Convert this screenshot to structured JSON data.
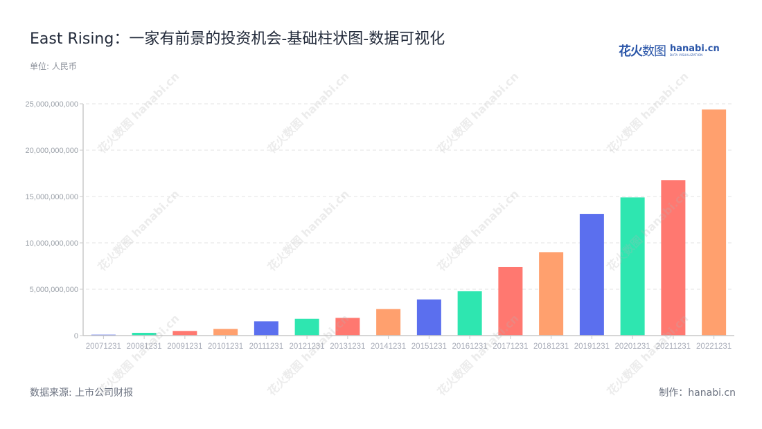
{
  "header": {
    "title": "East Rising：一家有前景的投资机会-基础柱状图-数据可视化",
    "unit": "单位: 人民币"
  },
  "logo": {
    "cn_bold": "花火",
    "cn_thin": "数图",
    "en": "hanabi.cn",
    "en_sub": "DATA VISUALIZATION"
  },
  "footer": {
    "source": "数据来源: 上市公司财报",
    "credit": "制作：hanabi.cn"
  },
  "watermark": "花火数图 hanabi.cn",
  "palette": [
    "#5b6fee",
    "#2ee6b0",
    "#ff7870",
    "#ffa06e"
  ],
  "chart_data": {
    "type": "bar",
    "title": "East Rising：一家有前景的投资机会-基础柱状图-数据可视化",
    "subtitle": "单位: 人民币",
    "xlabel": "",
    "ylabel": "",
    "categories": [
      "20071231",
      "20081231",
      "20091231",
      "20101231",
      "20111231",
      "20121231",
      "20131231",
      "20141231",
      "20151231",
      "20161231",
      "20171231",
      "20181231",
      "20191231",
      "20201231",
      "20211231",
      "20221231"
    ],
    "values": [
      100000000,
      300000000,
      500000000,
      720000000,
      1540000000,
      1810000000,
      1910000000,
      2860000000,
      3900000000,
      4780000000,
      7390000000,
      9000000000,
      13130000000,
      14900000000,
      16770000000,
      24380000000
    ],
    "ylim": [
      0,
      25000000000
    ],
    "yticks": [
      0,
      5000000000,
      10000000000,
      15000000000,
      20000000000,
      25000000000
    ],
    "ytick_labels": [
      "0",
      "5,000,000,000",
      "10,000,000,000",
      "15,000,000,000",
      "20,000,000,000",
      "25,000,000,000"
    ],
    "grid": "horizontal dashed",
    "legend": "none",
    "source": "数据来源: 上市公司财报"
  }
}
